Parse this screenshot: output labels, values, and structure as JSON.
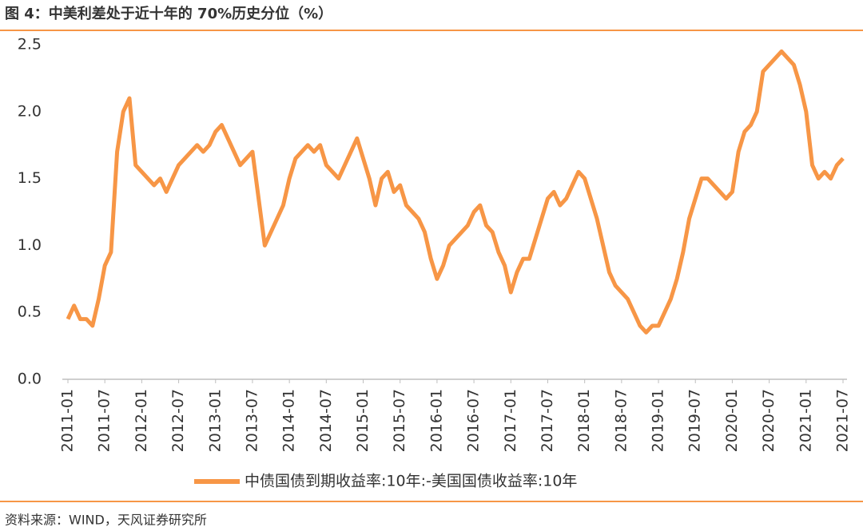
{
  "chart_data": {
    "type": "line",
    "title": "图 4：中美利差处于近十年的 70%历史分位（%）",
    "source": "资料来源：WIND，天风证券研究所",
    "x": [
      "2011-01",
      "2011-02",
      "2011-03",
      "2011-04",
      "2011-05",
      "2011-06",
      "2011-07",
      "2011-08",
      "2011-09",
      "2011-10",
      "2011-11",
      "2011-12",
      "2012-01",
      "2012-02",
      "2012-03",
      "2012-04",
      "2012-05",
      "2012-06",
      "2012-07",
      "2012-08",
      "2012-09",
      "2012-10",
      "2012-11",
      "2012-12",
      "2013-01",
      "2013-02",
      "2013-03",
      "2013-04",
      "2013-05",
      "2013-06",
      "2013-07",
      "2013-08",
      "2013-09",
      "2013-10",
      "2013-11",
      "2013-12",
      "2014-01",
      "2014-02",
      "2014-03",
      "2014-04",
      "2014-05",
      "2014-06",
      "2014-07",
      "2014-08",
      "2014-09",
      "2014-10",
      "2014-11",
      "2014-12",
      "2015-01",
      "2015-02",
      "2015-03",
      "2015-04",
      "2015-05",
      "2015-06",
      "2015-07",
      "2015-08",
      "2015-09",
      "2015-10",
      "2015-11",
      "2015-12",
      "2016-01",
      "2016-02",
      "2016-03",
      "2016-04",
      "2016-05",
      "2016-06",
      "2016-07",
      "2016-08",
      "2016-09",
      "2016-10",
      "2016-11",
      "2016-12",
      "2017-01",
      "2017-02",
      "2017-03",
      "2017-04",
      "2017-05",
      "2017-06",
      "2017-07",
      "2017-08",
      "2017-09",
      "2017-10",
      "2017-11",
      "2017-12",
      "2018-01",
      "2018-02",
      "2018-03",
      "2018-04",
      "2018-05",
      "2018-06",
      "2018-07",
      "2018-08",
      "2018-09",
      "2018-10",
      "2018-11",
      "2018-12",
      "2019-01",
      "2019-02",
      "2019-03",
      "2019-04",
      "2019-05",
      "2019-06",
      "2019-07",
      "2019-08",
      "2019-09",
      "2019-10",
      "2019-11",
      "2019-12",
      "2020-01",
      "2020-02",
      "2020-03",
      "2020-04",
      "2020-05",
      "2020-06",
      "2020-07",
      "2020-08",
      "2020-09",
      "2020-10",
      "2020-11",
      "2020-12",
      "2021-01",
      "2021-02",
      "2021-03",
      "2021-04",
      "2021-05",
      "2021-06",
      "2021-07"
    ],
    "series": [
      {
        "name": "中债国债到期收益率:10年:-美国国债收益率:10年",
        "color": "#f79646",
        "values": [
          0.45,
          0.55,
          0.45,
          0.45,
          0.4,
          0.6,
          0.85,
          0.95,
          1.7,
          2.0,
          2.1,
          1.6,
          1.55,
          1.5,
          1.45,
          1.5,
          1.4,
          1.5,
          1.6,
          1.65,
          1.7,
          1.75,
          1.7,
          1.75,
          1.85,
          1.9,
          1.8,
          1.7,
          1.6,
          1.65,
          1.7,
          1.35,
          1.0,
          1.1,
          1.2,
          1.3,
          1.5,
          1.65,
          1.7,
          1.75,
          1.7,
          1.75,
          1.6,
          1.55,
          1.5,
          1.6,
          1.7,
          1.8,
          1.65,
          1.5,
          1.3,
          1.5,
          1.55,
          1.4,
          1.45,
          1.3,
          1.25,
          1.2,
          1.1,
          0.9,
          0.75,
          0.85,
          1.0,
          1.05,
          1.1,
          1.15,
          1.25,
          1.3,
          1.15,
          1.1,
          0.95,
          0.85,
          0.65,
          0.8,
          0.9,
          0.9,
          1.05,
          1.2,
          1.35,
          1.4,
          1.3,
          1.35,
          1.45,
          1.55,
          1.5,
          1.35,
          1.2,
          1.0,
          0.8,
          0.7,
          0.65,
          0.6,
          0.5,
          0.4,
          0.35,
          0.4,
          0.4,
          0.5,
          0.6,
          0.75,
          0.95,
          1.2,
          1.35,
          1.5,
          1.5,
          1.45,
          1.4,
          1.35,
          1.4,
          1.7,
          1.85,
          1.9,
          2.0,
          2.3,
          2.35,
          2.4,
          2.45,
          2.4,
          2.35,
          2.2,
          2.0,
          1.6,
          1.5,
          1.55,
          1.5,
          1.6,
          1.65
        ]
      }
    ],
    "xticks": [
      "2011-01",
      "2011-07",
      "2012-01",
      "2012-07",
      "2013-01",
      "2013-07",
      "2014-01",
      "2014-07",
      "2015-01",
      "2015-07",
      "2016-01",
      "2016-07",
      "2017-01",
      "2017-07",
      "2018-01",
      "2018-07",
      "2019-01",
      "2019-07",
      "2020-01",
      "2020-07",
      "2021-01",
      "2021-07"
    ],
    "xlim": [
      "2011-01",
      "2021-07"
    ],
    "ylim": [
      0,
      2.5
    ],
    "yticks": [
      {
        "value": 0,
        "label": "0.0"
      },
      0.5,
      {
        "value": 1,
        "label": "1.0"
      },
      1.5,
      {
        "value": 2,
        "label": "2.0"
      },
      2.5
    ],
    "legend": "bottom",
    "grid": false
  }
}
